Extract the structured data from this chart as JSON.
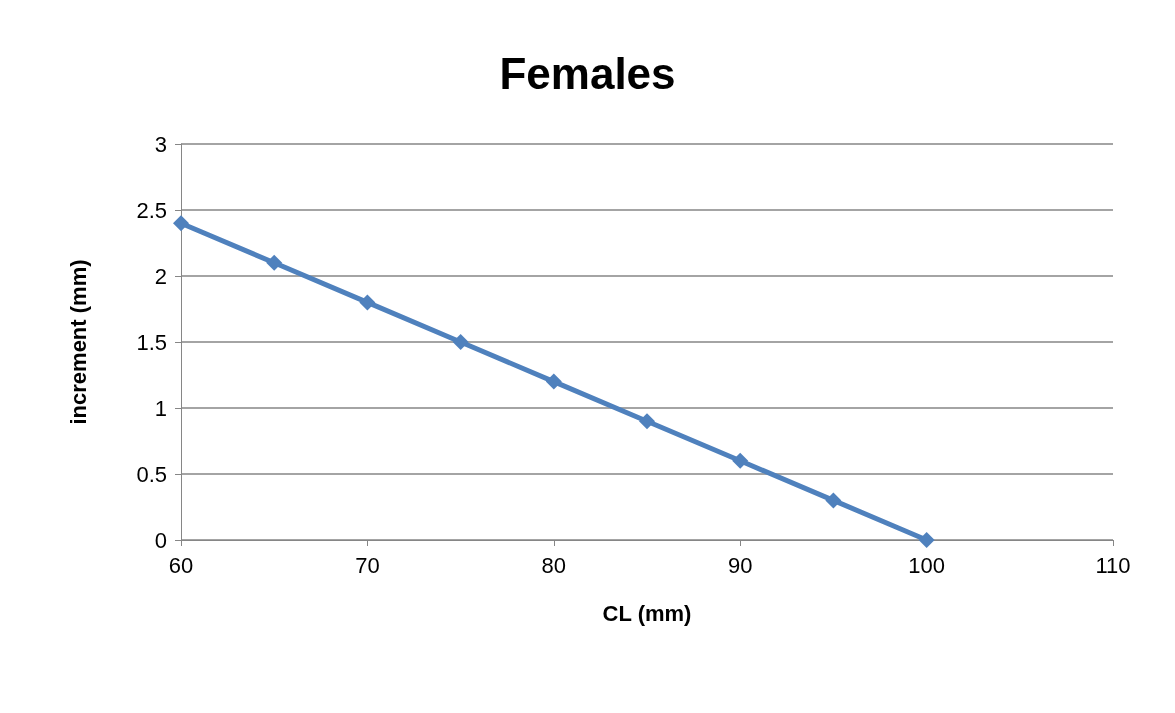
{
  "chart_data": {
    "type": "line",
    "title": "Females",
    "xlabel": "CL (mm)",
    "ylabel": "increment (mm)",
    "x": [
      60,
      65,
      70,
      75,
      80,
      85,
      90,
      95,
      100
    ],
    "series": [
      {
        "color": "#4f81bd",
        "values": [
          2.4,
          2.1,
          1.8,
          1.5,
          1.2,
          0.9,
          0.6,
          0.3,
          0
        ]
      }
    ],
    "xlim": [
      60,
      110
    ],
    "xticks": [
      60,
      70,
      80,
      90,
      100,
      110
    ],
    "ylim": [
      0,
      3
    ],
    "yticks": [
      0,
      0.5,
      1,
      1.5,
      2,
      2.5,
      3
    ],
    "grid": "y",
    "marker": "diamond",
    "line_style": "solid"
  }
}
